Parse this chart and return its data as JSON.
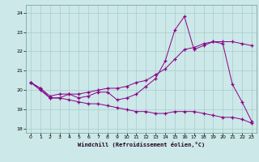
{
  "xlabel": "Windchill (Refroidissement éolien,°C)",
  "xlim": [
    -0.5,
    23.5
  ],
  "ylim": [
    17.8,
    24.4
  ],
  "yticks": [
    18,
    19,
    20,
    21,
    22,
    23,
    24
  ],
  "xticks": [
    0,
    1,
    2,
    3,
    4,
    5,
    6,
    7,
    8,
    9,
    10,
    11,
    12,
    13,
    14,
    15,
    16,
    17,
    18,
    19,
    20,
    21,
    22,
    23
  ],
  "background_color": "#cce8e8",
  "grid_color": "#aacccc",
  "line_color": "#880088",
  "line1_x": [
    0,
    1,
    2,
    3,
    4,
    5,
    6,
    7,
    8,
    9,
    10,
    11,
    12,
    13,
    14,
    15,
    16,
    17,
    18,
    19,
    20,
    21,
    22,
    23
  ],
  "line1_y": [
    20.4,
    20.1,
    19.6,
    19.6,
    19.8,
    19.6,
    19.7,
    19.9,
    19.9,
    19.5,
    19.6,
    19.8,
    20.2,
    20.6,
    21.5,
    23.1,
    23.8,
    22.1,
    22.3,
    22.5,
    22.4,
    20.3,
    19.4,
    18.4
  ],
  "line2_x": [
    0,
    1,
    2,
    3,
    4,
    5,
    6,
    7,
    8,
    9,
    10,
    11,
    12,
    13,
    14,
    15,
    16,
    17,
    18,
    19,
    20,
    21,
    22,
    23
  ],
  "line2_y": [
    20.4,
    20.1,
    19.7,
    19.8,
    19.8,
    19.8,
    19.9,
    20.0,
    20.1,
    20.1,
    20.2,
    20.4,
    20.5,
    20.8,
    21.1,
    21.6,
    22.1,
    22.2,
    22.4,
    22.5,
    22.5,
    22.5,
    22.4,
    22.3
  ],
  "line3_x": [
    0,
    1,
    2,
    3,
    4,
    5,
    6,
    7,
    8,
    9,
    10,
    11,
    12,
    13,
    14,
    15,
    16,
    17,
    18,
    19,
    20,
    21,
    22,
    23
  ],
  "line3_y": [
    20.4,
    20.0,
    19.6,
    19.6,
    19.5,
    19.4,
    19.3,
    19.3,
    19.2,
    19.1,
    19.0,
    18.9,
    18.9,
    18.8,
    18.8,
    18.9,
    18.9,
    18.9,
    18.8,
    18.7,
    18.6,
    18.6,
    18.5,
    18.3
  ]
}
